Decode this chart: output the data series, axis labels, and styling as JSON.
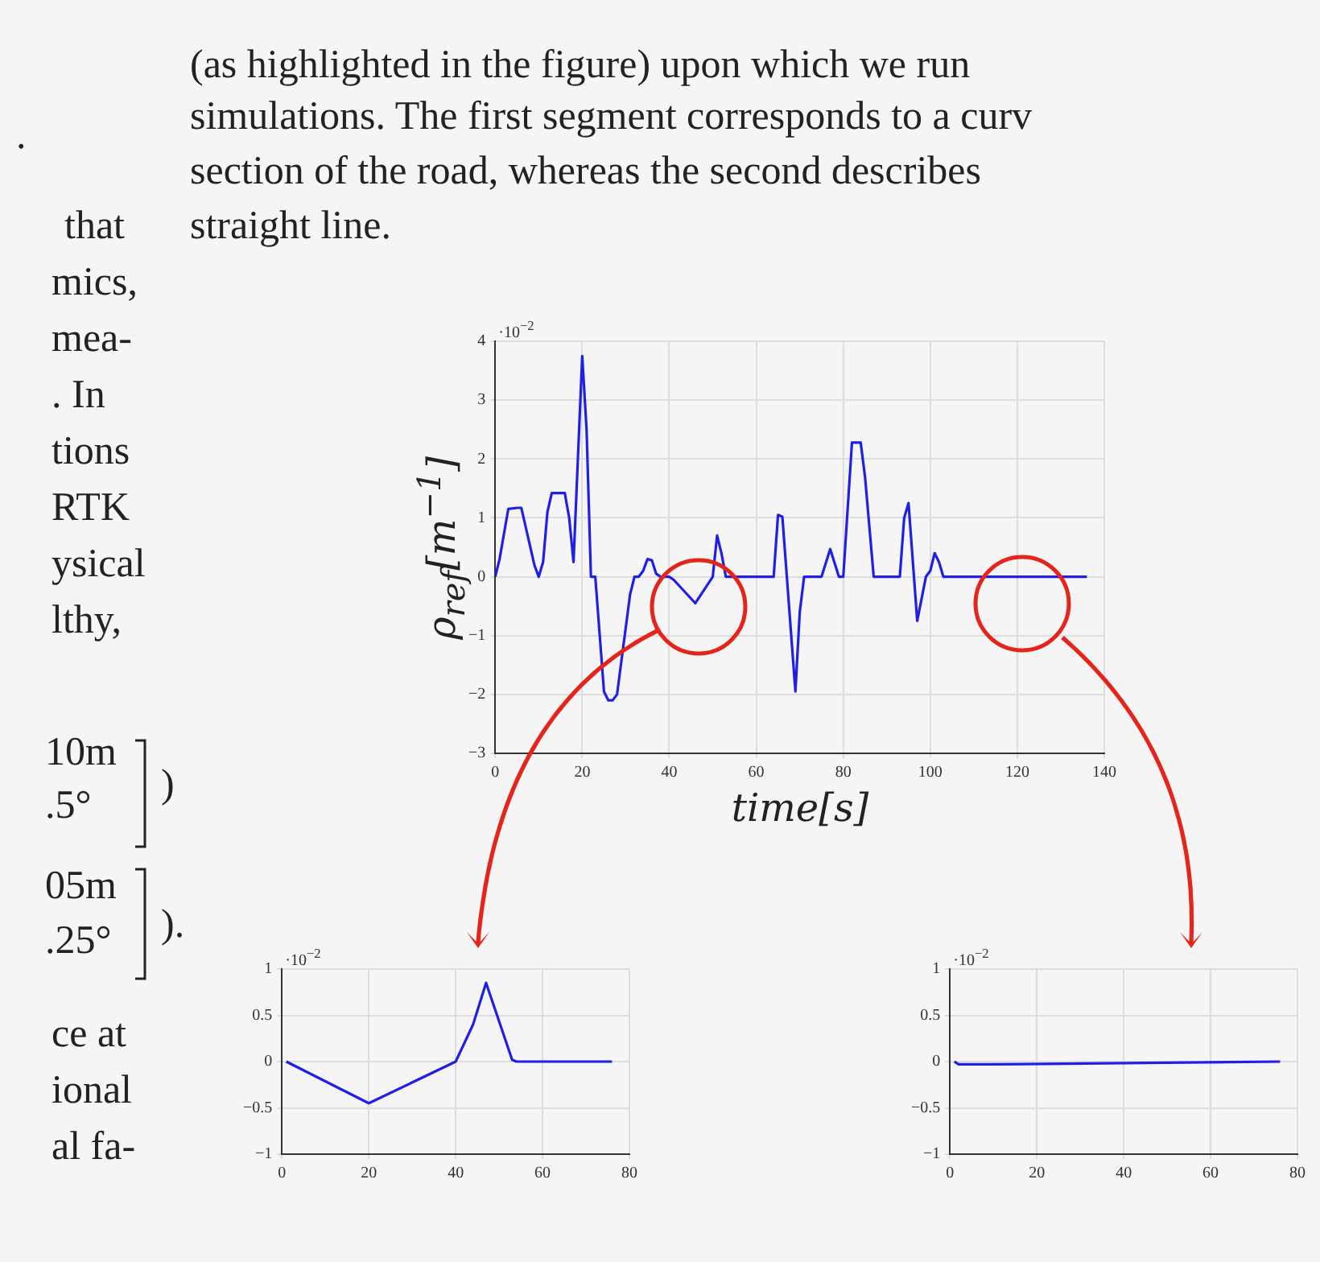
{
  "chart_data": [
    {
      "type": "line",
      "xlabel": "time[s]",
      "ylabel": "ρ$_{ref}$[m$^{−1}$]",
      "x": [
        0,
        1,
        3,
        5,
        6,
        9,
        10,
        11,
        12,
        13,
        16,
        17,
        18,
        20,
        21,
        22,
        23,
        25,
        26,
        27,
        28,
        31,
        32,
        33,
        34,
        35,
        36,
        37,
        38,
        40,
        41,
        46,
        50,
        51,
        52,
        53,
        64,
        65,
        66,
        69,
        70,
        71,
        75,
        77,
        79,
        80,
        82,
        84,
        85,
        87,
        93,
        94,
        95,
        97,
        99,
        100,
        101,
        102,
        103,
        136
      ],
      "series": [
        {
          "color": "#1f1fe6",
          "values": [
            0,
            0.3,
            1.15,
            1.17,
            1.17,
            0.2,
            0,
            0.25,
            1.1,
            1.42,
            1.42,
            1.0,
            0.25,
            3.75,
            2.5,
            0,
            0,
            -1.95,
            -2.1,
            -2.1,
            -2.0,
            -0.3,
            0,
            0,
            0.1,
            0.3,
            0.28,
            0.05,
            0,
            0,
            -0.05,
            -0.45,
            0,
            0.7,
            0.4,
            0,
            0,
            1.05,
            1.02,
            -1.95,
            -0.6,
            0,
            0,
            0.47,
            0,
            0,
            2.28,
            2.28,
            1.7,
            0,
            0,
            1.0,
            1.25,
            -0.75,
            0,
            0.1,
            0.4,
            0.25,
            0,
            0
          ]
        }
      ],
      "xlim": [
        0,
        140
      ],
      "xticks": [
        0,
        20,
        40,
        60,
        80,
        100,
        120,
        140
      ],
      "ylim": [
        -3,
        4
      ],
      "yticks": [
        -3,
        -2,
        -1,
        0,
        1,
        2,
        3,
        4
      ],
      "grid": true,
      "legend": false,
      "marker": "none",
      "annotations": [
        "·10$^{−2}$",
        "(as highlighted in the figure) upon which we run",
        "simulations. The first segment corresponds to a curv",
        "section of the road, whereas the second describes",
        "straight line.",
        ".",
        "that",
        "mics,",
        "mea-",
        ". In",
        "tions",
        "RTK",
        "ysical",
        "lthy,",
        "10m",
        ".5°",
        ")",
        "05m",
        ".25°",
        ").",
        "ce at",
        "ional",
        "al fa-"
      ]
    },
    {
      "type": "line",
      "x": [
        1,
        20,
        40,
        44,
        47,
        53,
        54,
        76
      ],
      "series": [
        {
          "color": "#1f1fe6",
          "values": [
            0,
            -0.45,
            0,
            0.4,
            0.85,
            0.02,
            0,
            0
          ]
        }
      ],
      "xlim": [
        0,
        80
      ],
      "xticks": [
        0,
        20,
        40,
        60,
        80
      ],
      "ylim": [
        -1,
        1
      ],
      "yticks": [
        -1,
        -0.5,
        0,
        0.5,
        1
      ],
      "grid": true,
      "legend": false,
      "marker": "none",
      "annotations": [
        "·10$^{−2}$"
      ]
    },
    {
      "type": "line",
      "x": [
        1,
        2,
        10,
        76
      ],
      "series": [
        {
          "color": "#1f1fe6",
          "values": [
            0,
            -0.03,
            -0.03,
            0
          ]
        }
      ],
      "xlim": [
        0,
        80
      ],
      "xticks": [
        0,
        20,
        40,
        60,
        80
      ],
      "ylim": [
        -1,
        1
      ],
      "yticks": [
        -1,
        -0.5,
        0,
        0.5,
        1
      ],
      "grid": true,
      "legend": false,
      "marker": "none",
      "annotations": [
        "·10$^{−2}$"
      ]
    }
  ]
}
